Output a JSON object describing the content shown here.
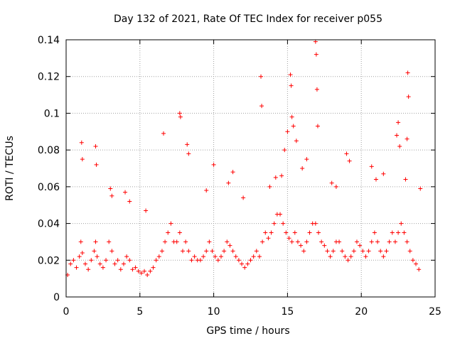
{
  "chart_data": {
    "type": "scatter",
    "title": "Day 132 of 2021, Rate Of TEC Index for receiver p055",
    "xlabel": "GPS time / hours",
    "ylabel": "ROTI / TECUs",
    "xlim": [
      0,
      25
    ],
    "ylim": [
      0,
      0.14
    ],
    "x_ticks": [
      "0",
      "5",
      "10",
      "15",
      "20",
      "25"
    ],
    "y_ticks": [
      "0",
      "0.02",
      "0.04",
      "0.06",
      "0.08",
      "0.1",
      "0.12",
      "0.14"
    ],
    "grid": true,
    "legend": "none",
    "marker": "+",
    "color": "#ff0000",
    "series": [
      {
        "x": [
          0.1,
          0.3,
          0.5,
          0.7,
          0.9,
          1.0,
          1.1,
          1.3,
          1.5,
          1.7,
          1.9,
          2.0,
          2.1,
          2.3,
          2.5,
          2.7,
          2.9,
          3.1,
          3.3,
          3.5,
          3.7,
          3.9,
          4.1,
          4.3,
          4.5,
          4.7,
          4.9,
          5.1,
          5.3,
          5.5,
          5.7,
          5.9,
          6.1,
          6.3,
          6.5,
          6.7,
          6.9,
          7.1,
          7.3,
          7.5,
          7.7,
          7.9,
          8.1,
          8.3,
          8.5,
          8.7,
          8.9,
          9.1,
          9.3,
          9.5,
          9.7,
          9.9,
          10.1,
          10.3,
          10.5,
          10.7,
          10.9,
          11.1,
          11.3,
          11.5,
          11.7,
          11.9,
          12.1,
          12.3,
          12.5,
          12.7,
          12.9,
          13.1,
          13.3,
          13.5,
          13.7,
          13.9,
          14.1,
          14.3,
          14.5,
          14.7,
          14.9,
          15.1,
          15.3,
          15.5,
          15.7,
          15.9,
          16.1,
          16.3,
          16.5,
          16.7,
          16.9,
          17.1,
          17.3,
          17.5,
          17.7,
          17.9,
          18.1,
          18.3,
          18.5,
          18.7,
          18.9,
          19.1,
          19.3,
          19.5,
          19.7,
          19.9,
          20.1,
          20.3,
          20.5,
          20.7,
          20.9,
          21.1,
          21.3,
          21.5,
          21.7,
          21.9,
          22.1,
          22.3,
          22.5,
          22.7,
          22.9,
          23.1,
          23.3,
          23.5,
          23.7,
          23.9,
          1.05,
          1.1,
          2.0,
          2.05,
          3.0,
          3.1,
          6.6,
          7.7,
          7.75,
          8.2,
          8.3,
          10.0,
          11.3,
          13.2,
          13.25,
          15.2,
          15.25,
          15.3,
          15.4,
          16.9,
          16.95,
          17.0,
          17.05,
          19.0,
          19.2,
          20.7,
          22.4,
          22.5,
          22.6,
          23.0,
          23.1,
          23.15,
          23.2,
          14.6,
          14.8,
          15.0,
          15.6,
          16.0,
          16.3,
          9.5,
          11.0,
          12.0,
          4.0,
          4.3,
          5.4,
          13.8,
          14.2,
          18.0,
          18.3,
          21.0,
          21.5,
          24.0
        ],
        "y": [
          0.012,
          0.018,
          0.02,
          0.016,
          0.022,
          0.03,
          0.024,
          0.018,
          0.015,
          0.02,
          0.025,
          0.03,
          0.022,
          0.018,
          0.016,
          0.02,
          0.03,
          0.025,
          0.018,
          0.02,
          0.015,
          0.018,
          0.022,
          0.02,
          0.015,
          0.016,
          0.014,
          0.013,
          0.014,
          0.012,
          0.014,
          0.016,
          0.02,
          0.022,
          0.025,
          0.03,
          0.035,
          0.04,
          0.03,
          0.03,
          0.035,
          0.025,
          0.03,
          0.025,
          0.02,
          0.022,
          0.02,
          0.02,
          0.022,
          0.025,
          0.03,
          0.025,
          0.022,
          0.02,
          0.022,
          0.025,
          0.03,
          0.028,
          0.025,
          0.022,
          0.02,
          0.018,
          0.016,
          0.018,
          0.02,
          0.022,
          0.025,
          0.022,
          0.03,
          0.035,
          0.032,
          0.035,
          0.04,
          0.045,
          0.045,
          0.04,
          0.035,
          0.032,
          0.03,
          0.035,
          0.03,
          0.028,
          0.025,
          0.03,
          0.035,
          0.04,
          0.04,
          0.035,
          0.03,
          0.028,
          0.025,
          0.022,
          0.025,
          0.03,
          0.03,
          0.025,
          0.022,
          0.02,
          0.022,
          0.025,
          0.03,
          0.028,
          0.025,
          0.022,
          0.025,
          0.03,
          0.035,
          0.03,
          0.025,
          0.022,
          0.025,
          0.03,
          0.035,
          0.03,
          0.035,
          0.04,
          0.035,
          0.03,
          0.025,
          0.02,
          0.018,
          0.015,
          0.084,
          0.075,
          0.082,
          0.072,
          0.059,
          0.055,
          0.089,
          0.1,
          0.098,
          0.083,
          0.078,
          0.072,
          0.068,
          0.12,
          0.104,
          0.121,
          0.115,
          0.098,
          0.093,
          0.139,
          0.132,
          0.113,
          0.093,
          0.078,
          0.074,
          0.071,
          0.088,
          0.095,
          0.082,
          0.064,
          0.086,
          0.122,
          0.109,
          0.066,
          0.08,
          0.09,
          0.085,
          0.07,
          0.075,
          0.058,
          0.062,
          0.054,
          0.057,
          0.052,
          0.047,
          0.06,
          0.065,
          0.062,
          0.06,
          0.064,
          0.067,
          0.059
        ]
      }
    ]
  }
}
